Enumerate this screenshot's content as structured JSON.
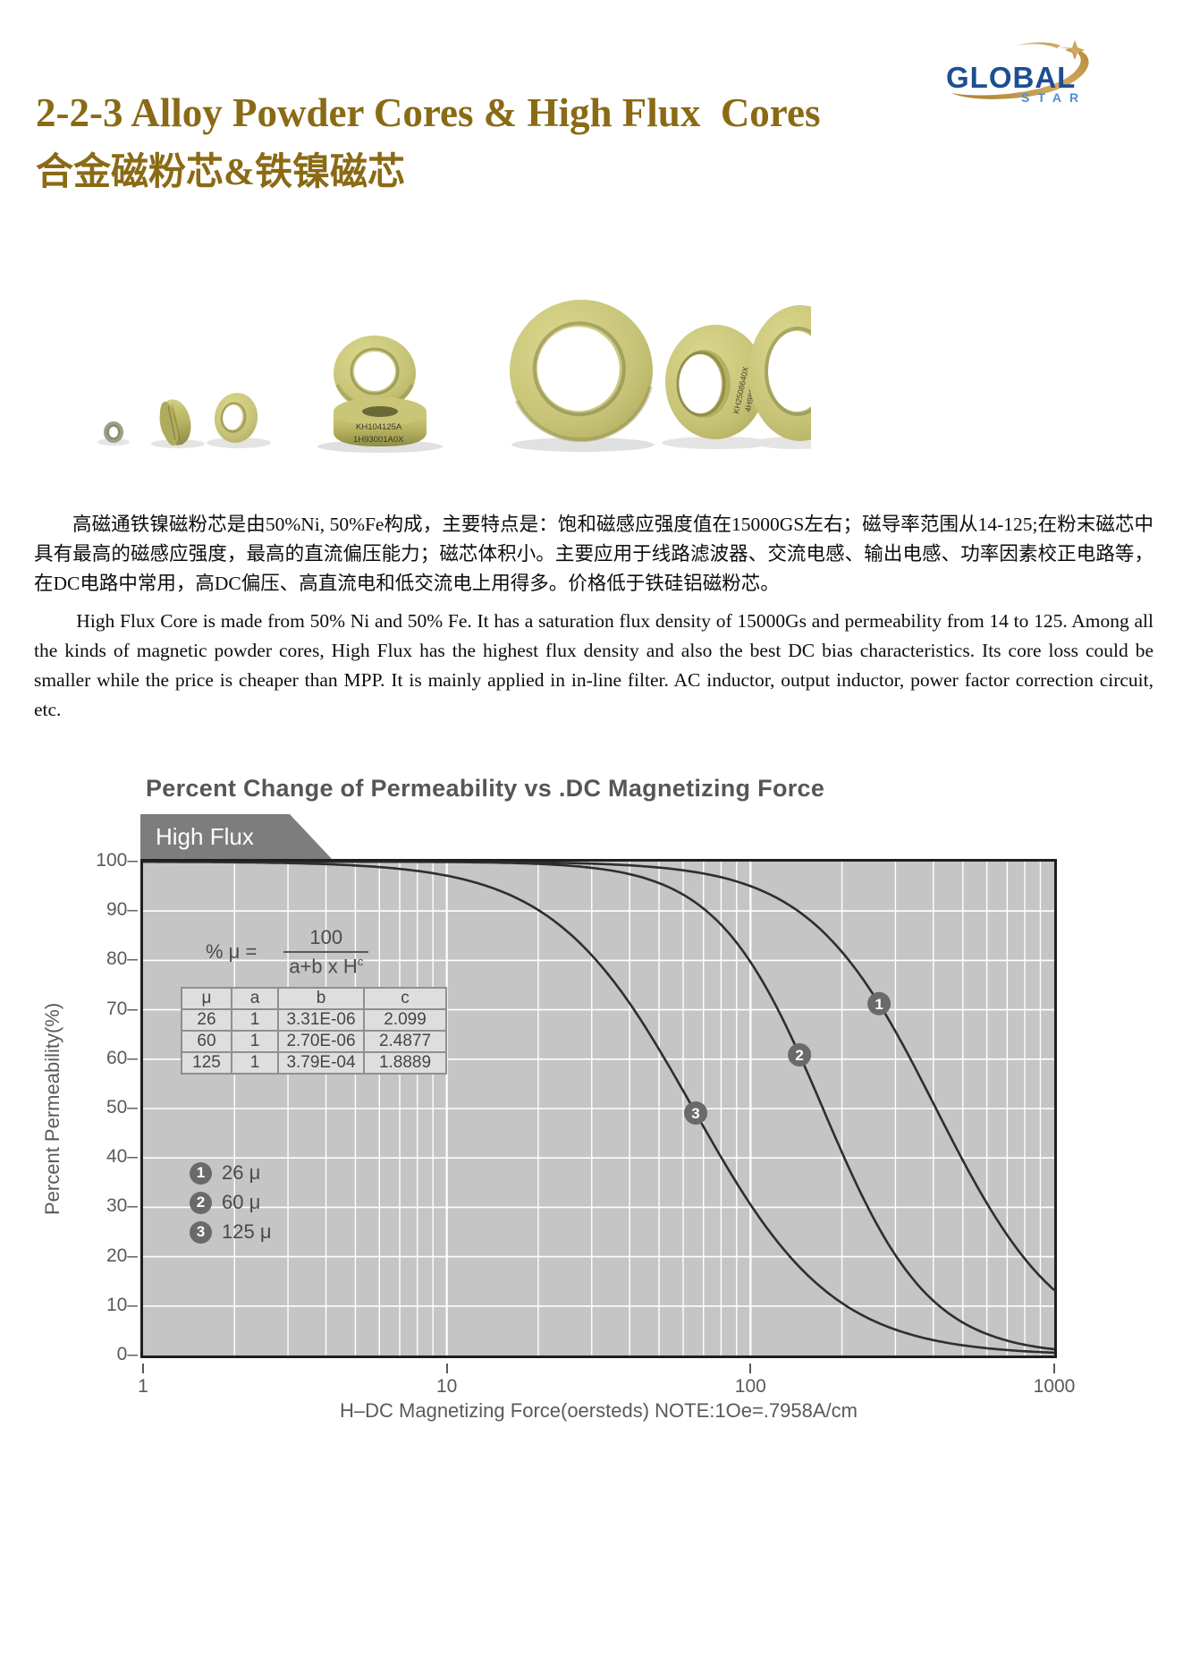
{
  "logo": {
    "global": "GLOBAL",
    "star": "STAR",
    "navy": "#1d4e91",
    "light_blue": "#4e8fd2",
    "gold": "#c09a52"
  },
  "title": {
    "line1": "2-2-3 Alloy Powder Cores & High Flux  Cores",
    "line2": "合金磁粉芯&铁镍磁芯",
    "color": "#8a6a14"
  },
  "photo": {
    "core_labels": {
      "stack_line1": "KH104125A",
      "stack_line2": "1H93001A0X",
      "rim_line1": "KH2508640X",
      "rim_line2": "4H9802551X"
    }
  },
  "paragraphs": {
    "cn": "高磁通铁镍磁粉芯是由50%Ni, 50%Fe构成，主要特点是：饱和磁感应强度值在15000GS左右；磁导率范围从14-125;在粉末磁芯中具有最高的磁感应强度，最高的直流偏压能力；磁芯体积小。主要应用于线路滤波器、交流电感、输出电感、功率因素校正电路等，在DC电路中常用，高DC偏压、高直流电和低交流电上用得多。价格低于铁硅铝磁粉芯。",
    "en": "High Flux Core is made from 50% Ni and 50% Fe. It has a saturation flux density of 15000Gs and permeability from 14 to 125. Among all the kinds of magnetic powder cores, High Flux has the highest flux density and also the best DC bias characteristics. Its core loss could be smaller while the price is cheaper than MPP. It is mainly applied in in-line filter. AC inductor, output inductor, power factor correction circuit, etc."
  },
  "chart": {
    "title": "Percent Change of Permeability vs .DC Magnetizing Force",
    "banner": "High Flux",
    "formula": {
      "lhs": "% μ =",
      "numerator": "100",
      "denominator": "a+b x H",
      "exponent": "c"
    },
    "table": {
      "headers": [
        "μ",
        "a",
        "b",
        "c"
      ],
      "rows": [
        [
          "26",
          "1",
          "3.31E-06",
          "2.099"
        ],
        [
          "60",
          "1",
          "2.70E-06",
          "2.4877"
        ],
        [
          "125",
          "1",
          "3.79E-04",
          "1.8889"
        ]
      ]
    },
    "legend": [
      {
        "num": "1",
        "label": "26 μ"
      },
      {
        "num": "2",
        "label": "60 μ"
      },
      {
        "num": "3",
        "label": "125 μ"
      }
    ],
    "xlabel": "H–DC Magnetizing Force(oersteds) NOTE:1Oe=.7958A/cm",
    "ylabel": "Percent Permeability(%)",
    "colors": {
      "plot_bg": "#c5c5c5",
      "grid": "#ffffff",
      "curve": "#2e2e2e",
      "marker": "#6a6a6a",
      "border": "#1f1f1f",
      "text": "#5a5a5a"
    }
  },
  "chart_data": {
    "type": "line",
    "x_scale": "log",
    "xlim": [
      1,
      1000
    ],
    "ylim": [
      0,
      100
    ],
    "xticks": [
      1,
      10,
      100,
      1000
    ],
    "yticks": [
      0,
      10,
      20,
      30,
      40,
      50,
      60,
      70,
      80,
      90,
      100
    ],
    "grid": "log minor verticals + horizontal every 10, white on gray",
    "model": "percent_mu = 100 / (a + b * H^c)",
    "series": [
      {
        "name": "26 μ",
        "marker": "1",
        "a": 1,
        "b": 3.31e-06,
        "c": 2.099,
        "marker_H": 265,
        "points": [
          [
            1,
            100
          ],
          [
            10,
            99.96
          ],
          [
            50,
            98.8
          ],
          [
            100,
            95.0
          ],
          [
            265,
            71.2
          ],
          [
            500,
            39.5
          ],
          [
            1000,
            13.2
          ]
        ]
      },
      {
        "name": "60 μ",
        "marker": "2",
        "a": 1,
        "b": 2.7e-06,
        "c": 2.4877,
        "marker_H": 145,
        "points": [
          [
            1,
            100
          ],
          [
            10,
            99.9
          ],
          [
            50,
            95.6
          ],
          [
            100,
            79.6
          ],
          [
            145,
            60.9
          ],
          [
            300,
            20.3
          ],
          [
            1000,
            1.3
          ]
        ]
      },
      {
        "name": "125 μ",
        "marker": "3",
        "a": 1,
        "b": 0.000379,
        "c": 1.8889,
        "marker_H": 66,
        "points": [
          [
            1,
            100
          ],
          [
            10,
            97.2
          ],
          [
            30,
            81.0
          ],
          [
            66,
            48.9
          ],
          [
            100,
            30.6
          ],
          [
            300,
            5.2
          ],
          [
            1000,
            0.6
          ]
        ]
      }
    ]
  }
}
